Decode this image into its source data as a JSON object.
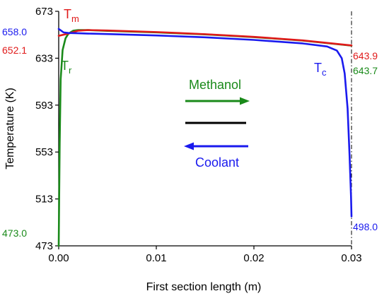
{
  "colors": {
    "methanol": "#1a8a1a",
    "reactor": "#1a8a1a",
    "coolant": "#1a1aee",
    "membrane": "#e01a1a",
    "separator": "#000000",
    "axis": "#000000"
  },
  "chart_data": {
    "type": "line",
    "xlabel": "First section length (m)",
    "ylabel": "Temperature (K)",
    "xlim": [
      0,
      0.03
    ],
    "ylim": [
      473,
      673
    ],
    "x_ticks": [
      "0.00",
      "0.01",
      "0.02",
      "0.03"
    ],
    "y_ticks": [
      "473",
      "513",
      "553",
      "593",
      "633",
      "673"
    ],
    "grid": false,
    "end_line_x": 0.03,
    "series": [
      {
        "name": "Tr",
        "color": "#1a8a1a",
        "points": [
          [
            0,
            473.0
          ],
          [
            0.0001,
            560
          ],
          [
            0.0002,
            615
          ],
          [
            0.0004,
            640
          ],
          [
            0.0007,
            650
          ],
          [
            0.001,
            654
          ],
          [
            0.0015,
            656.5
          ],
          [
            0.002,
            657
          ],
          [
            0.003,
            657
          ],
          [
            0.005,
            656.3
          ],
          [
            0.01,
            655
          ],
          [
            0.015,
            653.3
          ],
          [
            0.02,
            651
          ],
          [
            0.025,
            648
          ],
          [
            0.03,
            643.7
          ]
        ]
      },
      {
        "name": "Tm",
        "color": "#e01a1a",
        "points": [
          [
            0,
            652.1
          ],
          [
            0.001,
            654
          ],
          [
            0.002,
            656.5
          ],
          [
            0.003,
            657
          ],
          [
            0.005,
            656.6
          ],
          [
            0.01,
            655.3
          ],
          [
            0.015,
            653.5
          ],
          [
            0.02,
            651.2
          ],
          [
            0.025,
            648.2
          ],
          [
            0.03,
            643.9
          ]
        ]
      },
      {
        "name": "Tc",
        "color": "#1a1aee",
        "points": [
          [
            0,
            658.0
          ],
          [
            0.0005,
            655
          ],
          [
            0.001,
            654.5
          ],
          [
            0.002,
            654.3
          ],
          [
            0.003,
            654
          ],
          [
            0.005,
            653.6
          ],
          [
            0.01,
            652.4
          ],
          [
            0.015,
            650.8
          ],
          [
            0.02,
            648.6
          ],
          [
            0.025,
            645.6
          ],
          [
            0.0275,
            643
          ],
          [
            0.0285,
            639.5
          ],
          [
            0.029,
            633
          ],
          [
            0.0293,
            620
          ],
          [
            0.0296,
            590
          ],
          [
            0.0298,
            550
          ],
          [
            0.02995,
            515
          ],
          [
            0.03,
            498.0
          ]
        ]
      }
    ],
    "labels": {
      "tm": {
        "main": "T",
        "sub": "m"
      },
      "tr": {
        "main": "T",
        "sub": "r"
      },
      "tc": {
        "main": "T",
        "sub": "c"
      }
    },
    "annotations": {
      "tc_start": "658.0",
      "tm_start": "652.1",
      "tr_start": "473.0",
      "tm_end": "643.9",
      "tr_end": "643.7",
      "tc_end": "498.0"
    },
    "flow_labels": {
      "methanol": "Methanol",
      "coolant": "Coolant"
    }
  }
}
